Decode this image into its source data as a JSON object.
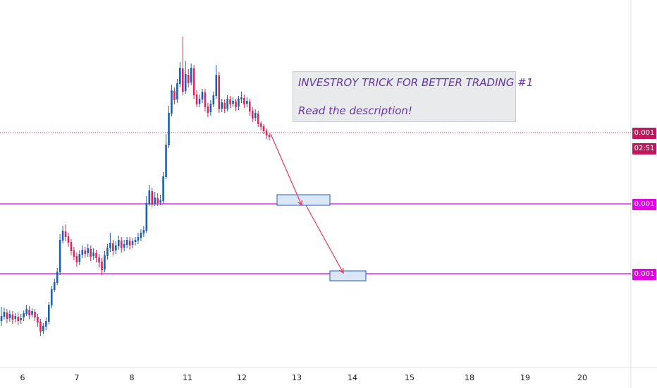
{
  "colors": {
    "up_candle": "#1f5fb0",
    "down_candle": "#e0245e",
    "horizontal_line": "#e600e6",
    "last_price_line": "#c2185b",
    "last_price_tag": "#c2185b",
    "level_tag": "#e600e6",
    "arrow": "#e53958",
    "target_box_border": "#1e5bbf",
    "target_box_fill": "#dbe7f7",
    "note_text": "#6535a8"
  },
  "annotation": {
    "line1": "INVESTROY TRICK FOR BETTER TRADING #1",
    "line2": "Read the description!"
  },
  "price_axis": {
    "last_price": "0.001",
    "countdown": "02:51",
    "level_1": "0.001",
    "level_2": "0.001"
  },
  "time_axis": {
    "ticks": [
      "6",
      "7",
      "8",
      "11",
      "12",
      "13",
      "14",
      "15",
      "18",
      "19",
      "20"
    ]
  },
  "chart_data": {
    "type": "candlestick",
    "x_axis_ticks": [
      "6",
      "7",
      "8",
      "11",
      "12",
      "13",
      "14",
      "15",
      "18",
      "19",
      "20"
    ],
    "y_axis_labels": [
      "0.001",
      "0.001",
      "0.001"
    ],
    "horizontal_levels": 2,
    "grid": false,
    "title": "",
    "series": [
      {
        "values": [
          [
            455,
            448,
            462,
            435
          ],
          [
            449,
            442,
            453,
            436
          ],
          [
            443,
            452,
            458,
            438
          ],
          [
            451,
            445,
            456,
            440
          ],
          [
            446,
            453,
            459,
            441
          ],
          [
            452,
            448,
            457,
            444
          ],
          [
            449,
            455,
            461,
            443
          ],
          [
            454,
            451,
            459,
            445
          ],
          [
            450,
            444,
            455,
            440
          ],
          [
            445,
            438,
            448,
            432
          ],
          [
            439,
            447,
            452,
            434
          ],
          [
            446,
            441,
            450,
            437
          ],
          [
            442,
            450,
            455,
            438
          ],
          [
            449,
            457,
            463,
            445
          ],
          [
            456,
            470,
            476,
            452
          ],
          [
            469,
            462,
            474,
            458
          ],
          [
            463,
            455,
            468,
            450
          ],
          [
            456,
            432,
            460,
            428
          ],
          [
            433,
            410,
            437,
            405
          ],
          [
            411,
            400,
            414,
            395
          ],
          [
            401,
            385,
            404,
            380
          ],
          [
            386,
            340,
            390,
            332
          ],
          [
            341,
            327,
            345,
            320
          ],
          [
            328,
            336,
            342,
            318
          ],
          [
            335,
            344,
            350,
            330
          ],
          [
            343,
            356,
            362,
            339
          ],
          [
            355,
            364,
            369,
            350
          ],
          [
            363,
            372,
            378,
            358
          ],
          [
            371,
            360,
            376,
            355
          ],
          [
            361,
            354,
            366,
            348
          ],
          [
            355,
            360,
            365,
            350
          ],
          [
            359,
            352,
            364,
            346
          ],
          [
            353,
            364,
            370,
            348
          ],
          [
            363,
            358,
            368,
            352
          ],
          [
            359,
            366,
            372,
            354
          ],
          [
            365,
            372,
            379,
            360
          ],
          [
            371,
            383,
            390,
            366
          ],
          [
            382,
            362,
            386,
            356
          ],
          [
            363,
            351,
            368,
            346
          ],
          [
            352,
            344,
            357,
            330
          ],
          [
            345,
            356,
            362,
            340
          ],
          [
            355,
            348,
            360,
            342
          ],
          [
            349,
            340,
            354,
            334
          ],
          [
            341,
            352,
            358,
            336
          ],
          [
            351,
            346,
            356,
            340
          ],
          [
            347,
            340,
            352,
            336
          ],
          [
            341,
            348,
            354,
            336
          ],
          [
            347,
            342,
            352,
            338
          ],
          [
            343,
            340,
            348,
            336
          ],
          [
            341,
            336,
            346,
            330
          ],
          [
            337,
            330,
            342,
            325
          ],
          [
            331,
            326,
            336,
            320
          ],
          [
            327,
            288,
            330,
            278
          ],
          [
            289,
            270,
            292,
            262
          ],
          [
            271,
            290,
            294,
            266
          ],
          [
            289,
            280,
            292,
            272
          ],
          [
            281,
            288,
            292,
            274
          ],
          [
            287,
            284,
            291,
            276
          ],
          [
            285,
            250,
            289,
            244
          ],
          [
            251,
            205,
            254,
            190
          ],
          [
            206,
            160,
            210,
            150
          ],
          [
            161,
            128,
            165,
            120
          ],
          [
            129,
            142,
            148,
            124
          ],
          [
            141,
            118,
            146,
            112
          ],
          [
            119,
            96,
            123,
            88
          ],
          [
            97,
            130,
            135,
            52
          ],
          [
            129,
            105,
            133,
            86
          ],
          [
            106,
            118,
            124,
            98
          ],
          [
            117,
            96,
            121,
            90
          ],
          [
            97,
            135,
            140,
            92
          ],
          [
            134,
            148,
            152,
            128
          ],
          [
            147,
            140,
            152,
            134
          ],
          [
            141,
            130,
            146,
            126
          ],
          [
            131,
            152,
            158,
            126
          ],
          [
            151,
            160,
            166,
            146
          ],
          [
            159,
            147,
            164,
            142
          ],
          [
            148,
            135,
            152,
            130
          ],
          [
            136,
            106,
            140,
            92
          ],
          [
            107,
            155,
            160,
            102
          ],
          [
            154,
            145,
            159,
            140
          ],
          [
            146,
            155,
            160,
            141
          ],
          [
            154,
            140,
            158,
            135
          ],
          [
            141,
            148,
            153,
            136
          ],
          [
            147,
            143,
            151,
            138
          ],
          [
            144,
            152,
            157,
            140
          ],
          [
            151,
            140,
            156,
            136
          ],
          [
            141,
            138,
            146,
            130
          ],
          [
            139,
            148,
            153,
            134
          ],
          [
            147,
            143,
            152,
            138
          ],
          [
            144,
            158,
            164,
            140
          ],
          [
            157,
            168,
            173,
            152
          ],
          [
            167,
            160,
            172,
            155
          ],
          [
            161,
            176,
            180,
            157
          ],
          [
            175,
            180,
            185,
            172
          ],
          [
            179,
            186,
            190,
            176
          ],
          [
            185,
            192,
            197,
            182
          ],
          [
            191,
            194,
            199,
            188
          ]
        ]
      }
    ]
  }
}
